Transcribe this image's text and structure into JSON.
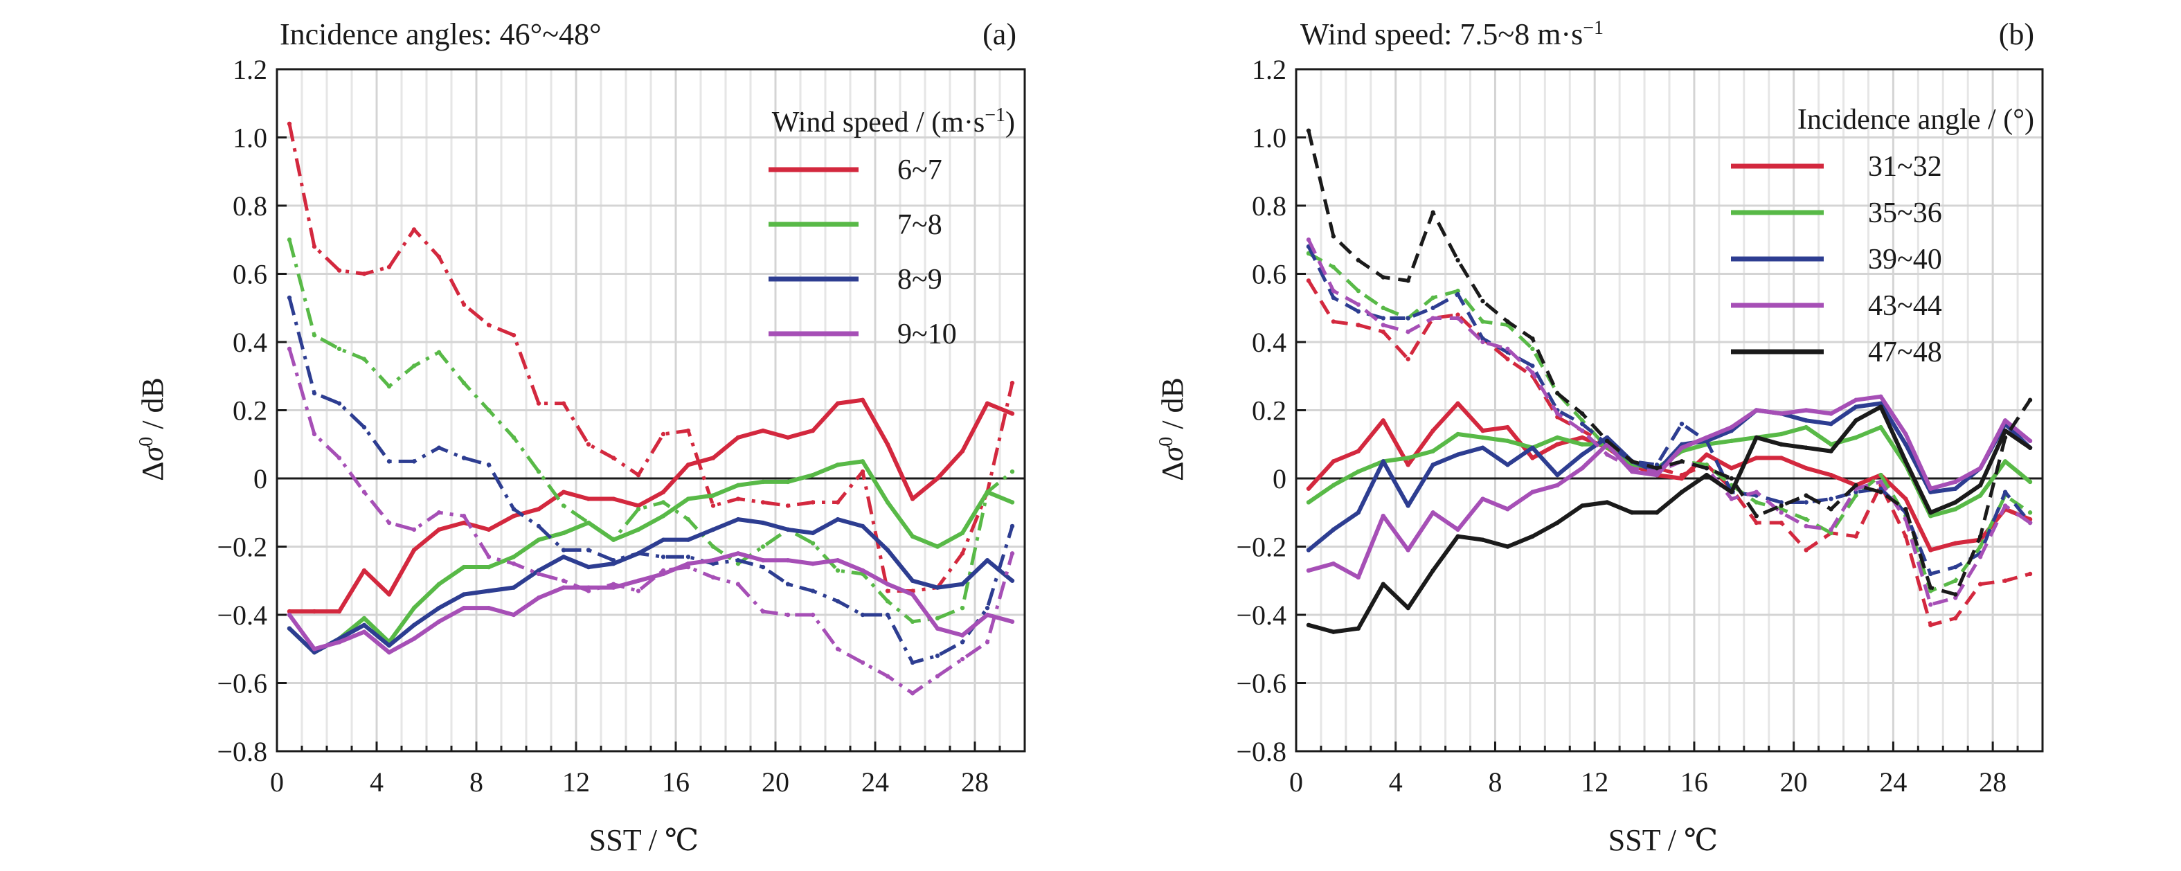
{
  "figure": {
    "panels": [
      {
        "title": "Incidence angles: 46°~48°",
        "tag": "(a)",
        "legend_title": "Wind speed / (m·s",
        "legend_title_sup": "−1",
        "legend_title_end": ")"
      },
      {
        "title": "Wind speed: 7.5~8 m·s",
        "title_sup": "−1",
        "tag": "(b)",
        "legend_title": "Incidence angle / (°)"
      }
    ]
  },
  "chart_data": [
    {
      "type": "line",
      "title": "Incidence angles: 46°~48°",
      "panel_label": "(a)",
      "xlabel": "SST / ℃",
      "ylabel": "Δσ⁰ / dB",
      "xlim": [
        0,
        30
      ],
      "ylim": [
        -0.8,
        1.2
      ],
      "xticks": [
        0,
        4,
        8,
        12,
        16,
        20,
        24,
        28
      ],
      "yticks": [
        -0.8,
        -0.6,
        -0.4,
        -0.2,
        0,
        0.2,
        0.4,
        0.6,
        0.8,
        1.0,
        1.2
      ],
      "ytick_labels": [
        "−0.8",
        "−0.6",
        "−0.4",
        "−0.2",
        "0",
        "0.2",
        "0.4",
        "0.6",
        "0.8",
        "1.0",
        "1.2"
      ],
      "grid": true,
      "legend_position": "top-right",
      "legend_title": "Wind speed / (m·s−1)",
      "x": [
        0.5,
        1.5,
        2.5,
        3.5,
        4.5,
        5.5,
        6.5,
        7.5,
        8.5,
        9.5,
        10.5,
        11.5,
        12.5,
        13.5,
        14.5,
        15.5,
        16.5,
        17.5,
        18.5,
        19.5,
        20.5,
        21.5,
        22.5,
        23.5,
        24.5,
        25.5,
        26.5,
        27.5,
        28.5,
        29.5
      ],
      "series": [
        {
          "name": "6~7",
          "color": "#d3283e",
          "style": "solid",
          "values": [
            -0.39,
            -0.39,
            -0.39,
            -0.27,
            -0.34,
            -0.21,
            -0.15,
            -0.13,
            -0.15,
            -0.11,
            -0.09,
            -0.04,
            -0.06,
            -0.06,
            -0.08,
            -0.04,
            0.04,
            0.06,
            0.12,
            0.14,
            0.12,
            0.14,
            0.22,
            0.23,
            0.1,
            -0.06,
            0.0,
            0.08,
            0.22,
            0.19
          ]
        },
        {
          "name": "6~7",
          "color": "#d3283e",
          "style": "dashdot",
          "values": [
            1.04,
            0.68,
            0.61,
            0.6,
            0.62,
            0.73,
            0.65,
            0.51,
            0.45,
            0.42,
            0.22,
            0.22,
            0.1,
            0.06,
            0.01,
            0.13,
            0.14,
            -0.08,
            -0.06,
            -0.07,
            -0.08,
            -0.07,
            -0.07,
            0.02,
            -0.33,
            -0.33,
            -0.32,
            -0.22,
            -0.04,
            0.28
          ]
        },
        {
          "name": "7~8",
          "color": "#58b947",
          "style": "solid",
          "values": [
            -0.44,
            -0.51,
            -0.47,
            -0.41,
            -0.48,
            -0.38,
            -0.31,
            -0.26,
            -0.26,
            -0.23,
            -0.18,
            -0.16,
            -0.13,
            -0.18,
            -0.15,
            -0.11,
            -0.06,
            -0.05,
            -0.02,
            -0.01,
            -0.01,
            0.01,
            0.04,
            0.05,
            -0.07,
            -0.17,
            -0.2,
            -0.16,
            -0.04,
            -0.07
          ]
        },
        {
          "name": "7~8",
          "color": "#58b947",
          "style": "dashdot",
          "values": [
            0.7,
            0.42,
            0.38,
            0.35,
            0.27,
            0.33,
            0.37,
            0.28,
            0.2,
            0.12,
            0.02,
            -0.08,
            -0.13,
            -0.18,
            -0.09,
            -0.07,
            -0.12,
            -0.2,
            -0.25,
            -0.2,
            -0.15,
            -0.19,
            -0.27,
            -0.28,
            -0.36,
            -0.42,
            -0.41,
            -0.38,
            -0.04,
            0.02
          ]
        },
        {
          "name": "8~9",
          "color": "#2d3d91",
          "style": "solid",
          "values": [
            -0.44,
            -0.51,
            -0.47,
            -0.43,
            -0.49,
            -0.43,
            -0.38,
            -0.34,
            -0.33,
            -0.32,
            -0.27,
            -0.23,
            -0.26,
            -0.25,
            -0.22,
            -0.18,
            -0.18,
            -0.15,
            -0.12,
            -0.13,
            -0.15,
            -0.16,
            -0.12,
            -0.14,
            -0.21,
            -0.3,
            -0.32,
            -0.31,
            -0.24,
            -0.3
          ]
        },
        {
          "name": "8~9",
          "color": "#2d3d91",
          "style": "dashdot",
          "values": [
            0.53,
            0.25,
            0.22,
            0.15,
            0.05,
            0.05,
            0.09,
            0.06,
            0.04,
            -0.09,
            -0.14,
            -0.21,
            -0.21,
            -0.24,
            -0.22,
            -0.23,
            -0.23,
            -0.25,
            -0.24,
            -0.26,
            -0.31,
            -0.33,
            -0.36,
            -0.4,
            -0.4,
            -0.54,
            -0.52,
            -0.48,
            -0.38,
            -0.14
          ]
        },
        {
          "name": "9~10",
          "color": "#a64fb6",
          "style": "solid",
          "values": [
            -0.4,
            -0.5,
            -0.48,
            -0.45,
            -0.51,
            -0.47,
            -0.42,
            -0.38,
            -0.38,
            -0.4,
            -0.35,
            -0.32,
            -0.32,
            -0.32,
            -0.3,
            -0.28,
            -0.25,
            -0.24,
            -0.22,
            -0.24,
            -0.24,
            -0.25,
            -0.24,
            -0.27,
            -0.31,
            -0.34,
            -0.44,
            -0.46,
            -0.4,
            -0.42
          ]
        },
        {
          "name": "9~10",
          "color": "#a64fb6",
          "style": "dashdot",
          "values": [
            0.38,
            0.13,
            0.06,
            -0.04,
            -0.13,
            -0.15,
            -0.1,
            -0.11,
            -0.23,
            -0.25,
            -0.28,
            -0.3,
            -0.33,
            -0.31,
            -0.33,
            -0.27,
            -0.26,
            -0.29,
            -0.31,
            -0.39,
            -0.4,
            -0.4,
            -0.5,
            -0.54,
            -0.58,
            -0.63,
            -0.58,
            -0.53,
            -0.48,
            -0.22
          ]
        }
      ]
    },
    {
      "type": "line",
      "title": "Wind speed: 7.5~8 m·s−1",
      "panel_label": "(b)",
      "xlabel": "SST / ℃",
      "ylabel": "Δσ⁰ / dB",
      "xlim": [
        0,
        30
      ],
      "ylim": [
        -0.8,
        1.2
      ],
      "xticks": [
        0,
        4,
        8,
        12,
        16,
        20,
        24,
        28
      ],
      "yticks": [
        -0.8,
        -0.6,
        -0.4,
        -0.2,
        0,
        0.2,
        0.4,
        0.6,
        0.8,
        1.0,
        1.2
      ],
      "ytick_labels": [
        "−0.8",
        "−0.6",
        "−0.4",
        "−0.2",
        "0",
        "0.2",
        "0.4",
        "0.6",
        "0.8",
        "1.0",
        "1.2"
      ],
      "grid": true,
      "legend_position": "top-right",
      "legend_title": "Incidence angle / (°)",
      "x": [
        0.5,
        1.5,
        2.5,
        3.5,
        4.5,
        5.5,
        6.5,
        7.5,
        8.5,
        9.5,
        10.5,
        11.5,
        12.5,
        13.5,
        14.5,
        15.5,
        16.5,
        17.5,
        18.5,
        19.5,
        20.5,
        21.5,
        22.5,
        23.5,
        24.5,
        25.5,
        26.5,
        27.5,
        28.5,
        29.5
      ],
      "series": [
        {
          "name": "31~32",
          "color": "#d3283e",
          "style": "solid",
          "values": [
            -0.03,
            0.05,
            0.08,
            0.17,
            0.04,
            0.14,
            0.22,
            0.14,
            0.15,
            0.06,
            0.1,
            0.12,
            0.09,
            0.04,
            0.01,
            0.0,
            0.07,
            0.03,
            0.06,
            0.06,
            0.03,
            0.01,
            -0.02,
            0.01,
            -0.06,
            -0.21,
            -0.19,
            -0.18,
            -0.09,
            -0.12
          ]
        },
        {
          "name": "31~32",
          "color": "#d3283e",
          "style": "dash",
          "values": [
            0.58,
            0.46,
            0.45,
            0.43,
            0.35,
            0.47,
            0.48,
            0.41,
            0.35,
            0.3,
            0.18,
            0.14,
            0.1,
            0.03,
            0.03,
            0.01,
            0.04,
            -0.03,
            -0.13,
            -0.13,
            -0.21,
            -0.16,
            -0.17,
            -0.02,
            -0.17,
            -0.43,
            -0.41,
            -0.31,
            -0.3,
            -0.28
          ]
        },
        {
          "name": "35~36",
          "color": "#58b947",
          "style": "solid",
          "values": [
            -0.07,
            -0.02,
            0.02,
            0.05,
            0.06,
            0.08,
            0.13,
            0.12,
            0.11,
            0.09,
            0.12,
            0.1,
            0.1,
            0.04,
            0.03,
            0.08,
            0.1,
            0.11,
            0.12,
            0.13,
            0.15,
            0.1,
            0.12,
            0.15,
            0.04,
            -0.11,
            -0.09,
            -0.05,
            0.05,
            -0.01
          ]
        },
        {
          "name": "35~36",
          "color": "#58b947",
          "style": "dash",
          "values": [
            0.66,
            0.62,
            0.55,
            0.5,
            0.47,
            0.53,
            0.55,
            0.46,
            0.45,
            0.38,
            0.25,
            0.17,
            0.09,
            0.05,
            0.02,
            0.05,
            0.04,
            -0.02,
            -0.07,
            -0.09,
            -0.12,
            -0.16,
            -0.05,
            0.01,
            -0.11,
            -0.33,
            -0.3,
            -0.2,
            -0.05,
            -0.1
          ]
        },
        {
          "name": "39~40",
          "color": "#2d3d91",
          "style": "solid",
          "values": [
            -0.21,
            -0.15,
            -0.1,
            0.05,
            -0.08,
            0.04,
            0.07,
            0.09,
            0.04,
            0.09,
            0.01,
            0.07,
            0.12,
            0.05,
            0.02,
            0.1,
            0.11,
            0.14,
            0.2,
            0.19,
            0.17,
            0.16,
            0.21,
            0.22,
            0.1,
            -0.04,
            -0.03,
            0.03,
            0.16,
            0.09
          ]
        },
        {
          "name": "39~40",
          "color": "#2d3d91",
          "style": "dash",
          "values": [
            0.68,
            0.53,
            0.49,
            0.47,
            0.47,
            0.5,
            0.54,
            0.41,
            0.37,
            0.33,
            0.2,
            0.16,
            0.1,
            0.05,
            0.04,
            0.16,
            0.11,
            -0.04,
            -0.05,
            -0.07,
            -0.07,
            -0.06,
            -0.04,
            -0.03,
            -0.1,
            -0.28,
            -0.26,
            -0.22,
            -0.04,
            -0.13
          ]
        },
        {
          "name": "43~44",
          "color": "#a64fb6",
          "style": "solid",
          "values": [
            -0.27,
            -0.25,
            -0.29,
            -0.11,
            -0.21,
            -0.1,
            -0.15,
            -0.06,
            -0.09,
            -0.04,
            -0.02,
            0.03,
            0.1,
            0.02,
            0.01,
            0.09,
            0.12,
            0.15,
            0.2,
            0.19,
            0.2,
            0.19,
            0.23,
            0.24,
            0.13,
            -0.03,
            -0.01,
            0.03,
            0.17,
            0.11
          ]
        },
        {
          "name": "43~44",
          "color": "#a64fb6",
          "style": "dash",
          "values": [
            0.7,
            0.55,
            0.51,
            0.45,
            0.43,
            0.47,
            0.47,
            0.4,
            0.38,
            0.31,
            0.19,
            0.14,
            0.07,
            0.03,
            0.02,
            0.05,
            0.03,
            -0.06,
            -0.04,
            -0.1,
            -0.14,
            -0.15,
            -0.03,
            -0.01,
            -0.12,
            -0.37,
            -0.35,
            -0.23,
            -0.08,
            -0.13
          ]
        },
        {
          "name": "47~48",
          "color": "#1a1a1a",
          "style": "solid",
          "values": [
            -0.43,
            -0.45,
            -0.44,
            -0.31,
            -0.38,
            -0.27,
            -0.17,
            -0.18,
            -0.2,
            -0.17,
            -0.13,
            -0.08,
            -0.07,
            -0.1,
            -0.1,
            -0.04,
            0.01,
            -0.04,
            0.12,
            0.1,
            0.09,
            0.08,
            0.17,
            0.21,
            0.05,
            -0.1,
            -0.07,
            -0.02,
            0.14,
            0.09
          ]
        },
        {
          "name": "47~48",
          "color": "#1a1a1a",
          "style": "dash",
          "values": [
            1.02,
            0.71,
            0.64,
            0.59,
            0.58,
            0.78,
            0.64,
            0.52,
            0.46,
            0.41,
            0.25,
            0.19,
            0.11,
            0.05,
            0.03,
            0.05,
            0.03,
            0.0,
            -0.11,
            -0.08,
            -0.05,
            -0.09,
            -0.02,
            -0.04,
            -0.09,
            -0.32,
            -0.34,
            -0.17,
            0.12,
            0.23
          ]
        }
      ]
    }
  ]
}
